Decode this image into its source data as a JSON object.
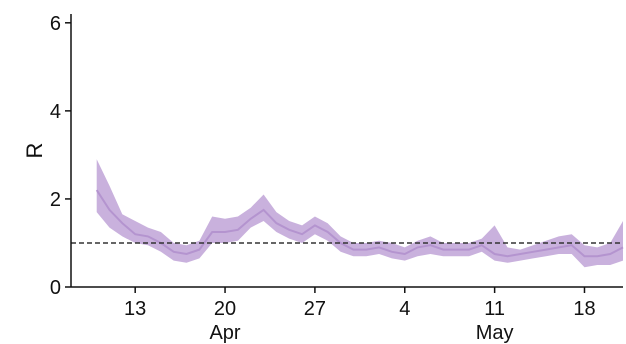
{
  "chart_data": {
    "type": "area",
    "title": "",
    "xlabel": "",
    "ylabel": "R",
    "ylim": [
      0,
      6.2
    ],
    "xlim": [
      "2020-04-08",
      "2020-05-21"
    ],
    "grid": false,
    "legend": "none",
    "x_ticks": [
      {
        "date": "2020-04-13",
        "label": "13"
      },
      {
        "date": "2020-04-20",
        "label": "20"
      },
      {
        "date": "2020-04-27",
        "label": "27"
      },
      {
        "date": "2020-05-04",
        "label": "4"
      },
      {
        "date": "2020-05-11",
        "label": "11"
      },
      {
        "date": "2020-05-18",
        "label": "18"
      }
    ],
    "month_labels": [
      {
        "date": "2020-04-20",
        "label": "Apr"
      },
      {
        "date": "2020-05-11",
        "label": "May"
      }
    ],
    "y_ticks": [
      0,
      2,
      4,
      6
    ],
    "reference_line": {
      "y": 1,
      "style": "dashed"
    },
    "colors": {
      "band": "#c9b1dd",
      "line": "#b494cf",
      "reference": "#333333"
    },
    "x": [
      "2020-04-10",
      "2020-04-11",
      "2020-04-12",
      "2020-04-13",
      "2020-04-14",
      "2020-04-15",
      "2020-04-16",
      "2020-04-17",
      "2020-04-18",
      "2020-04-19",
      "2020-04-20",
      "2020-04-21",
      "2020-04-22",
      "2020-04-23",
      "2020-04-24",
      "2020-04-25",
      "2020-04-26",
      "2020-04-27",
      "2020-04-28",
      "2020-04-29",
      "2020-04-30",
      "2020-05-01",
      "2020-05-02",
      "2020-05-03",
      "2020-05-04",
      "2020-05-05",
      "2020-05-06",
      "2020-05-07",
      "2020-05-08",
      "2020-05-09",
      "2020-05-10",
      "2020-05-11",
      "2020-05-12",
      "2020-05-13",
      "2020-05-14",
      "2020-05-15",
      "2020-05-16",
      "2020-05-17",
      "2020-05-18",
      "2020-05-19",
      "2020-05-20",
      "2020-05-21"
    ],
    "series": [
      {
        "values": [
          2.2,
          1.75,
          1.45,
          1.2,
          1.15,
          1.0,
          0.8,
          0.75,
          0.85,
          1.25,
          1.25,
          1.3,
          1.55,
          1.75,
          1.45,
          1.3,
          1.2,
          1.4,
          1.25,
          1.0,
          0.85,
          0.85,
          0.9,
          0.8,
          0.75,
          0.9,
          0.95,
          0.85,
          0.85,
          0.85,
          0.95,
          0.75,
          0.7,
          0.75,
          0.8,
          0.85,
          0.9,
          0.95,
          0.7,
          0.7,
          0.75,
          0.9
        ],
        "lower": [
          1.7,
          1.35,
          1.15,
          1.0,
          0.95,
          0.8,
          0.6,
          0.55,
          0.65,
          1.0,
          1.0,
          1.05,
          1.35,
          1.5,
          1.25,
          1.1,
          1.0,
          1.2,
          1.05,
          0.8,
          0.7,
          0.7,
          0.75,
          0.65,
          0.6,
          0.7,
          0.75,
          0.7,
          0.7,
          0.7,
          0.8,
          0.6,
          0.55,
          0.6,
          0.65,
          0.7,
          0.75,
          0.75,
          0.45,
          0.5,
          0.5,
          0.6
        ],
        "upper": [
          2.9,
          2.3,
          1.65,
          1.5,
          1.35,
          1.25,
          1.0,
          0.95,
          1.05,
          1.6,
          1.55,
          1.6,
          1.8,
          2.1,
          1.7,
          1.5,
          1.4,
          1.6,
          1.45,
          1.15,
          1.0,
          1.0,
          1.05,
          1.0,
          0.9,
          1.05,
          1.15,
          1.0,
          1.0,
          1.0,
          1.1,
          1.4,
          0.9,
          0.85,
          0.95,
          1.05,
          1.15,
          1.2,
          0.95,
          0.9,
          1.0,
          1.5
        ]
      }
    ]
  }
}
